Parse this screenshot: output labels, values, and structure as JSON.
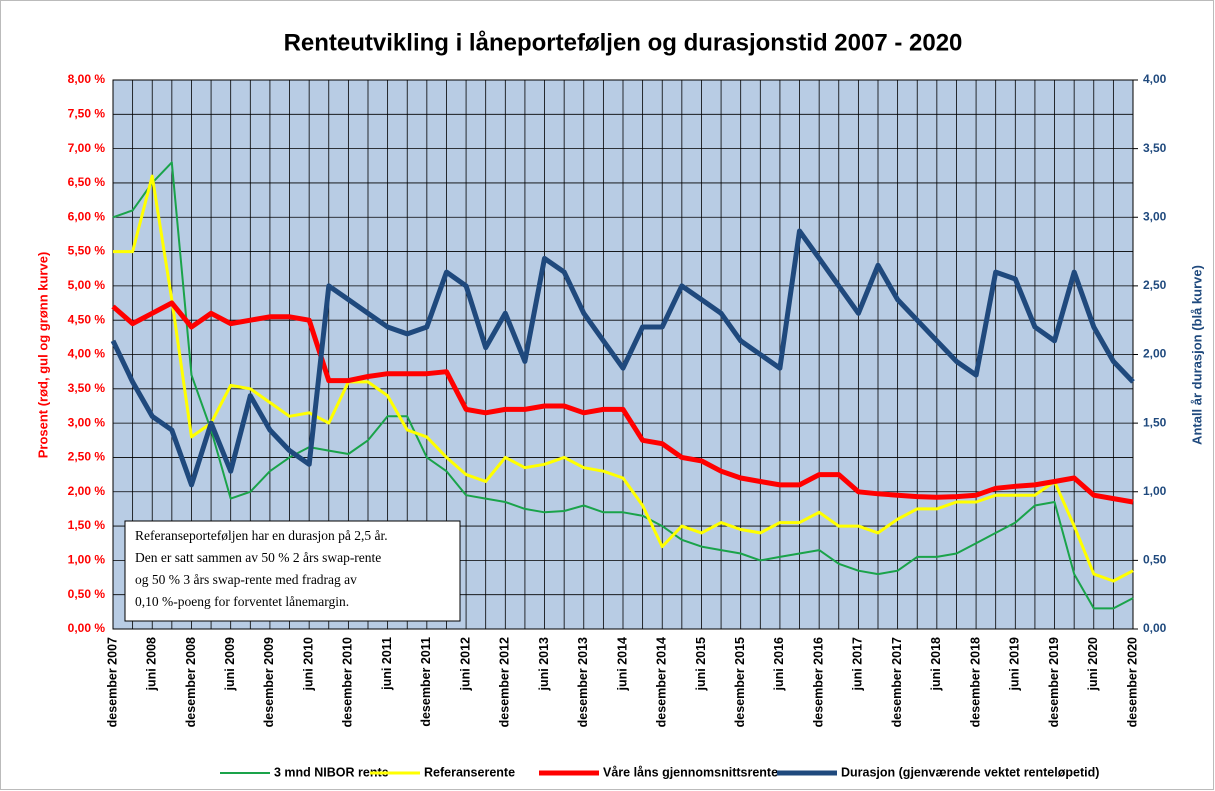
{
  "chart_data": {
    "type": "line",
    "title": "Renteutvikling i låneporteføljen og durasjonstid 2007 - 2020",
    "ylabel": "Prosent (rød, gul og grønn kurve)",
    "y2label": "Antall år durasjon (blå kurve)",
    "annotation": [
      "Referanseporteføljen har en durasjon på 2,5 år.",
      "Den er satt sammen av 50 % 2 års swap-rente",
      "og 50 % 3 års swap-rente med fradrag av",
      "0,10 %-poeng for forventet lånemargin."
    ],
    "categories": [
      "desember 2007",
      null,
      "juni 2008",
      null,
      "desember 2008",
      null,
      "juni 2009",
      null,
      "desember 2009",
      null,
      "juni 2010",
      null,
      "desember 2010",
      null,
      "juni 2011",
      null,
      "desember 2011",
      null,
      "juni 2012",
      null,
      "desember 2012",
      null,
      "juni 2013",
      null,
      "desember 2013",
      null,
      "juni 2014",
      null,
      "desember 2014",
      null,
      "juni 2015",
      null,
      "desember 2015",
      null,
      "juni 2016",
      null,
      "desember 2016",
      null,
      "juni 2017",
      null,
      "desember 2017",
      null,
      "juni 2018",
      null,
      "desember 2018",
      null,
      "juni 2019",
      null,
      "desember 2019",
      null,
      "juni 2020",
      null,
      "desember 2020"
    ],
    "series": [
      {
        "name": "3 mnd NIBOR rente",
        "color": "#1aa34a",
        "values": [
          6.0,
          6.1,
          6.5,
          6.8,
          3.7,
          2.9,
          1.9,
          2.0,
          2.3,
          2.5,
          2.65,
          2.6,
          2.55,
          2.75,
          3.1,
          3.1,
          2.5,
          2.3,
          1.95,
          1.9,
          1.85,
          1.75,
          1.7,
          1.72,
          1.8,
          1.7,
          1.7,
          1.65,
          1.5,
          1.3,
          1.2,
          1.15,
          1.1,
          1.0,
          1.05,
          1.1,
          1.15,
          0.95,
          0.85,
          0.8,
          0.85,
          1.05,
          1.05,
          1.1,
          1.25,
          1.4,
          1.55,
          1.8,
          1.85,
          0.8,
          0.3,
          0.3,
          0.45
        ]
      },
      {
        "name": "Referanserente",
        "color": "#ffff00",
        "values": [
          5.5,
          5.5,
          6.6,
          4.8,
          2.8,
          3.0,
          3.55,
          3.5,
          3.3,
          3.1,
          3.15,
          3.0,
          3.6,
          3.6,
          3.4,
          2.9,
          2.8,
          2.5,
          2.25,
          2.15,
          2.5,
          2.35,
          2.4,
          2.5,
          2.35,
          2.3,
          2.2,
          1.8,
          1.2,
          1.5,
          1.4,
          1.55,
          1.45,
          1.4,
          1.55,
          1.55,
          1.7,
          1.5,
          1.5,
          1.4,
          1.6,
          1.75,
          1.75,
          1.85,
          1.85,
          1.95,
          1.95,
          1.95,
          2.15,
          1.5,
          0.8,
          0.7,
          0.85
        ]
      },
      {
        "name": "Våre låns gjennomsnittsrente",
        "color": "#ff0000",
        "values": [
          4.7,
          4.45,
          4.6,
          4.75,
          4.4,
          4.6,
          4.45,
          4.5,
          4.55,
          4.55,
          4.5,
          3.62,
          3.62,
          3.68,
          3.72,
          3.72,
          3.72,
          3.75,
          3.2,
          3.15,
          3.2,
          3.2,
          3.25,
          3.25,
          3.15,
          3.2,
          3.2,
          2.75,
          2.7,
          2.5,
          2.45,
          2.3,
          2.2,
          2.15,
          2.1,
          2.1,
          2.25,
          2.25,
          2.0,
          1.97,
          1.95,
          1.93,
          1.92,
          1.93,
          1.95,
          2.05,
          2.08,
          2.1,
          2.15,
          2.2,
          1.95,
          1.9,
          1.85
        ]
      },
      {
        "name": "Durasjon (gjenværende vektet renteløpetid)",
        "color": "#1f497d",
        "axis": "y2",
        "values": [
          2.1,
          1.8,
          1.55,
          1.45,
          1.05,
          1.5,
          1.15,
          1.7,
          1.45,
          1.3,
          1.2,
          2.5,
          2.4,
          2.3,
          2.2,
          2.15,
          2.2,
          2.6,
          2.5,
          2.05,
          2.3,
          1.95,
          2.7,
          2.6,
          2.3,
          2.1,
          1.9,
          2.2,
          2.2,
          2.5,
          2.4,
          2.3,
          2.1,
          2.0,
          1.9,
          2.9,
          2.7,
          2.5,
          2.3,
          2.65,
          2.4,
          2.25,
          2.1,
          1.95,
          1.85,
          2.6,
          2.55,
          2.2,
          2.1,
          2.6,
          2.2,
          1.95,
          1.8
        ]
      }
    ],
    "ylim": [
      0,
      8
    ],
    "yticks": [
      {
        "value": 0,
        "label": "0,00 %"
      },
      {
        "value": 0.5,
        "label": "0,50 %"
      },
      {
        "value": 1,
        "label": "1,00 %"
      },
      {
        "value": 1.5,
        "label": "1,50 %"
      },
      {
        "value": 2,
        "label": "2,00 %"
      },
      {
        "value": 2.5,
        "label": "2,50 %"
      },
      {
        "value": 3,
        "label": "3,00 %"
      },
      {
        "value": 3.5,
        "label": "3,50 %"
      },
      {
        "value": 4,
        "label": "4,00 %"
      },
      {
        "value": 4.5,
        "label": "4,50 %"
      },
      {
        "value": 5,
        "label": "5,00 %"
      },
      {
        "value": 5.5,
        "label": "5,50 %"
      },
      {
        "value": 6,
        "label": "6,00 %"
      },
      {
        "value": 6.5,
        "label": "6,50 %"
      },
      {
        "value": 7,
        "label": "7,00 %"
      },
      {
        "value": 7.5,
        "label": "7,50 %"
      },
      {
        "value": 8,
        "label": "8,00 %"
      }
    ],
    "y2lim": [
      0,
      4
    ],
    "y2ticks": [
      {
        "value": 0,
        "label": "0,00"
      },
      {
        "value": 0.5,
        "label": "0,50"
      },
      {
        "value": 1,
        "label": "1,00"
      },
      {
        "value": 1.5,
        "label": "1,50"
      },
      {
        "value": 2,
        "label": "2,00"
      },
      {
        "value": 2.5,
        "label": "2,50"
      },
      {
        "value": 3,
        "label": "3,00"
      },
      {
        "value": 3.5,
        "label": "3,50"
      },
      {
        "value": 4,
        "label": "4,00"
      }
    ],
    "grid": true,
    "legend": "bottom"
  }
}
